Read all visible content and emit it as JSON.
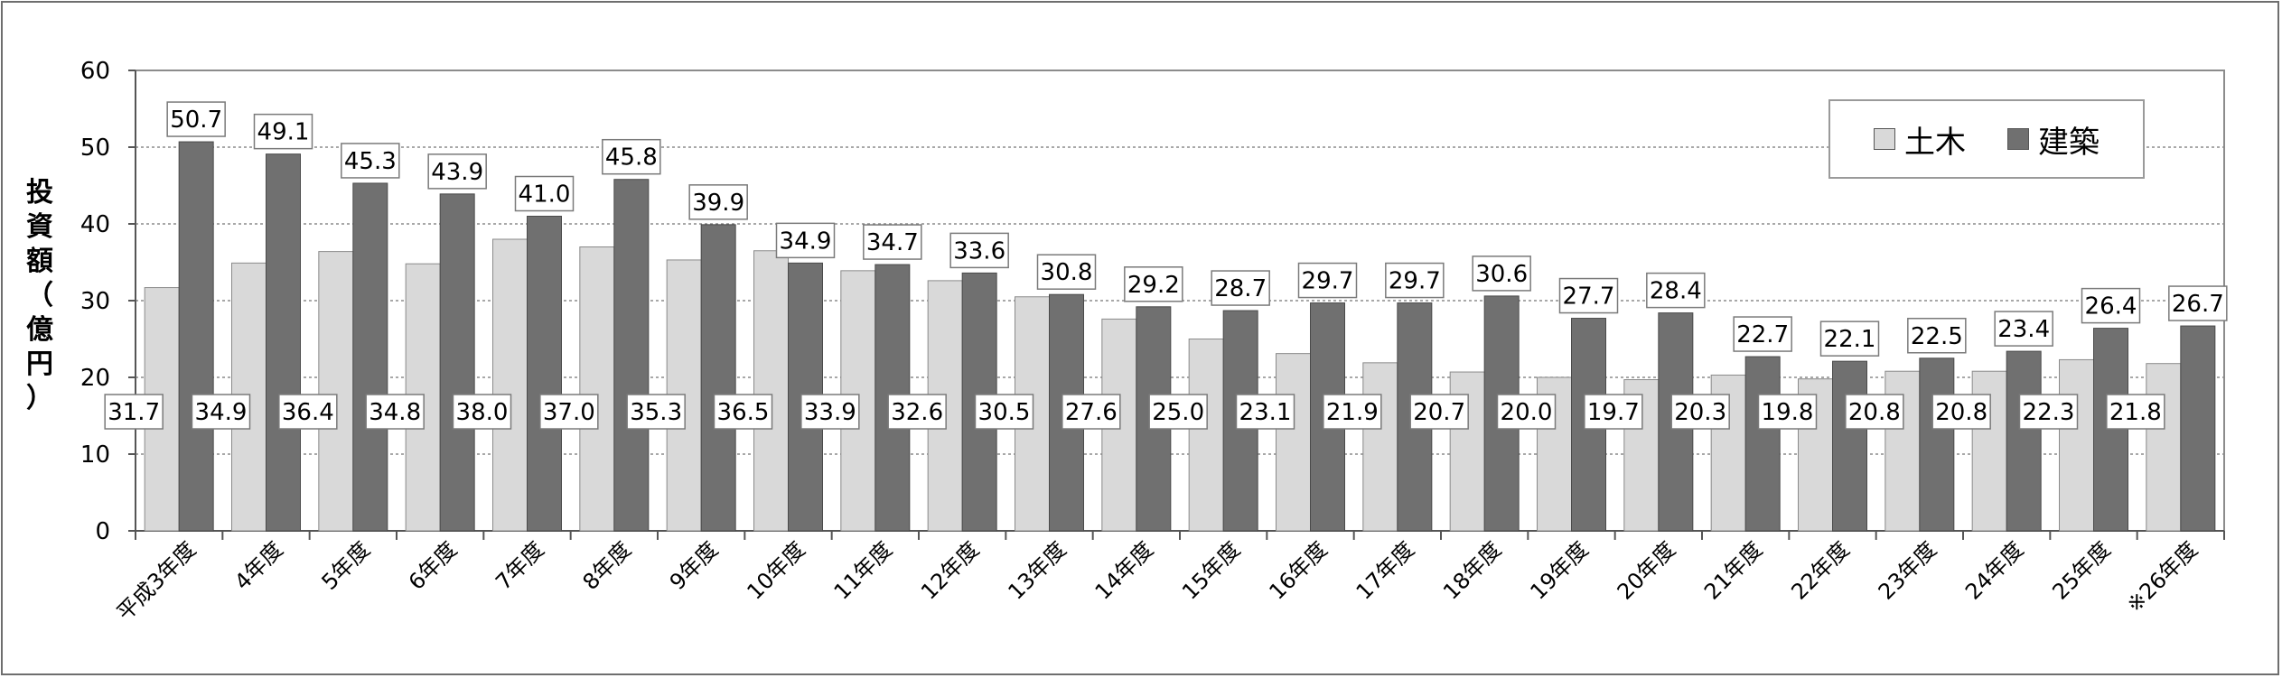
{
  "chart_data": {
    "type": "bar",
    "ylabel": [
      "投",
      "資",
      "額",
      "（",
      "億",
      "円",
      "）"
    ],
    "ylim": [
      0,
      60
    ],
    "yticks": [
      0,
      10,
      20,
      30,
      40,
      50,
      60
    ],
    "grid": true,
    "legend_position": "top-right",
    "categories": [
      "平成3年度",
      "4年度",
      "5年度",
      "6年度",
      "7年度",
      "8年度",
      "9年度",
      "10年度",
      "11年度",
      "12年度",
      "13年度",
      "14年度",
      "15年度",
      "16年度",
      "17年度",
      "18年度",
      "19年度",
      "20年度",
      "21年度",
      "22年度",
      "23年度",
      "24年度",
      "25年度",
      "※26年度"
    ],
    "series": [
      {
        "name": "土木",
        "color": "#d9d9d9",
        "values": [
          31.7,
          34.9,
          36.4,
          34.8,
          38.0,
          37.0,
          35.3,
          36.5,
          33.9,
          32.6,
          30.5,
          27.6,
          25.0,
          23.1,
          21.9,
          20.7,
          20.0,
          19.7,
          20.3,
          19.8,
          20.8,
          20.8,
          22.3,
          21.8
        ]
      },
      {
        "name": "建築",
        "color": "#707070",
        "values": [
          50.7,
          49.1,
          45.3,
          43.9,
          41.0,
          45.8,
          39.9,
          34.9,
          34.7,
          33.6,
          30.8,
          29.2,
          28.7,
          29.7,
          29.7,
          30.6,
          27.7,
          28.4,
          22.7,
          22.1,
          22.5,
          23.4,
          26.4,
          26.7
        ]
      }
    ]
  }
}
